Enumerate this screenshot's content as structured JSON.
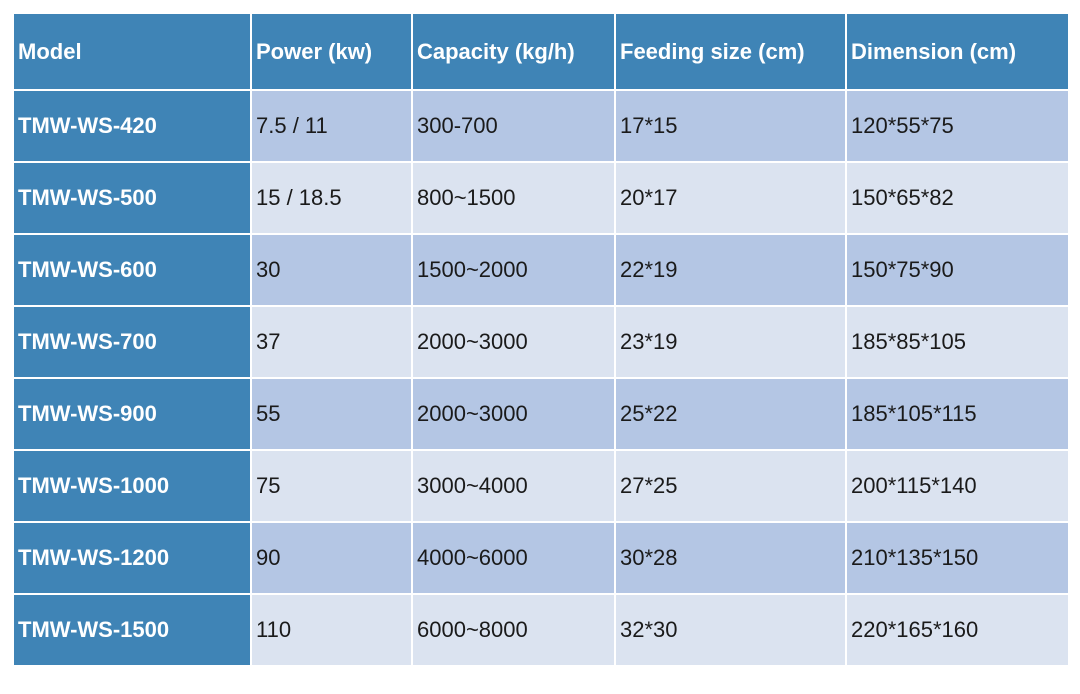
{
  "table": {
    "columns": [
      "Model",
      "Power (kw)",
      "Capacity (kg/h)",
      "Feeding size (cm)",
      "Dimension (cm)"
    ],
    "rows": [
      [
        "TMW-WS-420",
        "7.5 / 11",
        "300-700",
        "17*15",
        "120*55*75"
      ],
      [
        "TMW-WS-500",
        "15 / 18.5",
        "800~1500",
        "20*17",
        "150*65*82"
      ],
      [
        "TMW-WS-600",
        "30",
        "1500~2000",
        "22*19",
        "150*75*90"
      ],
      [
        "TMW-WS-700",
        "37",
        "2000~3000",
        "23*19",
        "185*85*105"
      ],
      [
        "TMW-WS-900",
        "55",
        "2000~3000",
        "25*22",
        "185*105*115"
      ],
      [
        "TMW-WS-1000",
        "75",
        "3000~4000",
        "27*25",
        "200*115*140"
      ],
      [
        "TMW-WS-1200",
        "90",
        "4000~6000",
        "30*28",
        "210*135*150"
      ],
      [
        "TMW-WS-1500",
        "110",
        "6000~8000",
        "32*30",
        "220*165*160"
      ]
    ]
  },
  "colors": {
    "header_bg": "#3f84b6",
    "row_odd_bg": "#b4c6e4",
    "row_even_bg": "#dbe3f0",
    "header_text": "#ffffff"
  }
}
